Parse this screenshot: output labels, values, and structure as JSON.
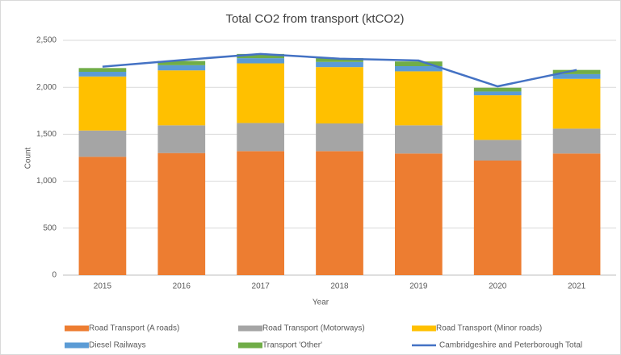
{
  "chart_data": {
    "type": "bar",
    "stacked": true,
    "title": "Total CO2 from transport (ktCO2)",
    "x_label": "Year",
    "y_label": "Count",
    "categories": [
      "2015",
      "2016",
      "2017",
      "2018",
      "2019",
      "2020",
      "2021"
    ],
    "series": [
      {
        "name": "Road Transport (A roads)",
        "color": "#ed7d31",
        "values": [
          1260,
          1300,
          1320,
          1320,
          1295,
          1220,
          1295
        ]
      },
      {
        "name": "Road Transport (Motorways)",
        "color": "#a5a5a5",
        "values": [
          280,
          295,
          300,
          295,
          300,
          220,
          265
        ]
      },
      {
        "name": "Road Transport (Minor roads)",
        "color": "#ffc000",
        "values": [
          575,
          585,
          635,
          600,
          575,
          475,
          530
        ]
      },
      {
        "name": "Diesel Railways",
        "color": "#5b9bd5",
        "values": [
          50,
          55,
          55,
          55,
          55,
          40,
          50
        ]
      },
      {
        "name": "Transport 'Other'",
        "color": "#70ad47",
        "values": [
          40,
          45,
          45,
          40,
          50,
          40,
          45
        ]
      },
      {
        "name": "Cambridgeshire and Peterborough Total",
        "color": "#4472c4",
        "type": "line",
        "values": [
          2220,
          2290,
          2355,
          2305,
          2285,
          2010,
          2185
        ]
      }
    ],
    "ylim": [
      0,
      2500
    ],
    "yticks": [
      0,
      500,
      {
        "value": 1000,
        "label": "1,000"
      },
      {
        "value": 1500,
        "label": "1,500"
      },
      {
        "value": 2000,
        "label": "2,000"
      },
      {
        "value": 2500,
        "label": "2,500"
      }
    ],
    "grid": true,
    "legend": "bottom"
  }
}
